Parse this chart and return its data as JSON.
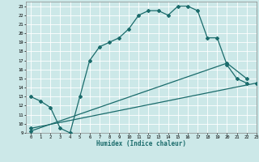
{
  "xlabel": "Humidex (Indice chaleur)",
  "bg_color": "#cce8e8",
  "grid_color": "#ffffff",
  "line_color": "#1a6b6b",
  "xlim": [
    -0.5,
    23
  ],
  "ylim": [
    9,
    23.5
  ],
  "xticks": [
    0,
    1,
    2,
    3,
    4,
    5,
    6,
    7,
    8,
    9,
    10,
    11,
    12,
    13,
    14,
    15,
    16,
    17,
    18,
    19,
    20,
    21,
    22,
    23
  ],
  "yticks": [
    9,
    10,
    11,
    12,
    13,
    14,
    15,
    16,
    17,
    18,
    19,
    20,
    21,
    22,
    23
  ],
  "curve1_x": [
    0,
    1,
    2,
    3,
    4,
    5,
    6,
    7,
    8,
    9,
    10,
    11,
    12,
    13,
    14,
    15,
    16,
    17,
    18,
    19,
    20,
    21,
    22
  ],
  "curve1_y": [
    13.0,
    12.5,
    11.8,
    9.5,
    9.0,
    13.0,
    17.0,
    18.5,
    19.0,
    19.5,
    20.5,
    22.0,
    22.5,
    22.5,
    22.0,
    23.0,
    23.0,
    22.5,
    19.5,
    19.5,
    16.5,
    15.0,
    14.5
  ],
  "curve2_x": [
    0,
    20,
    22
  ],
  "curve2_y": [
    9.2,
    16.7,
    15.0
  ],
  "curve3_x": [
    0,
    23
  ],
  "curve3_y": [
    9.5,
    14.5
  ]
}
